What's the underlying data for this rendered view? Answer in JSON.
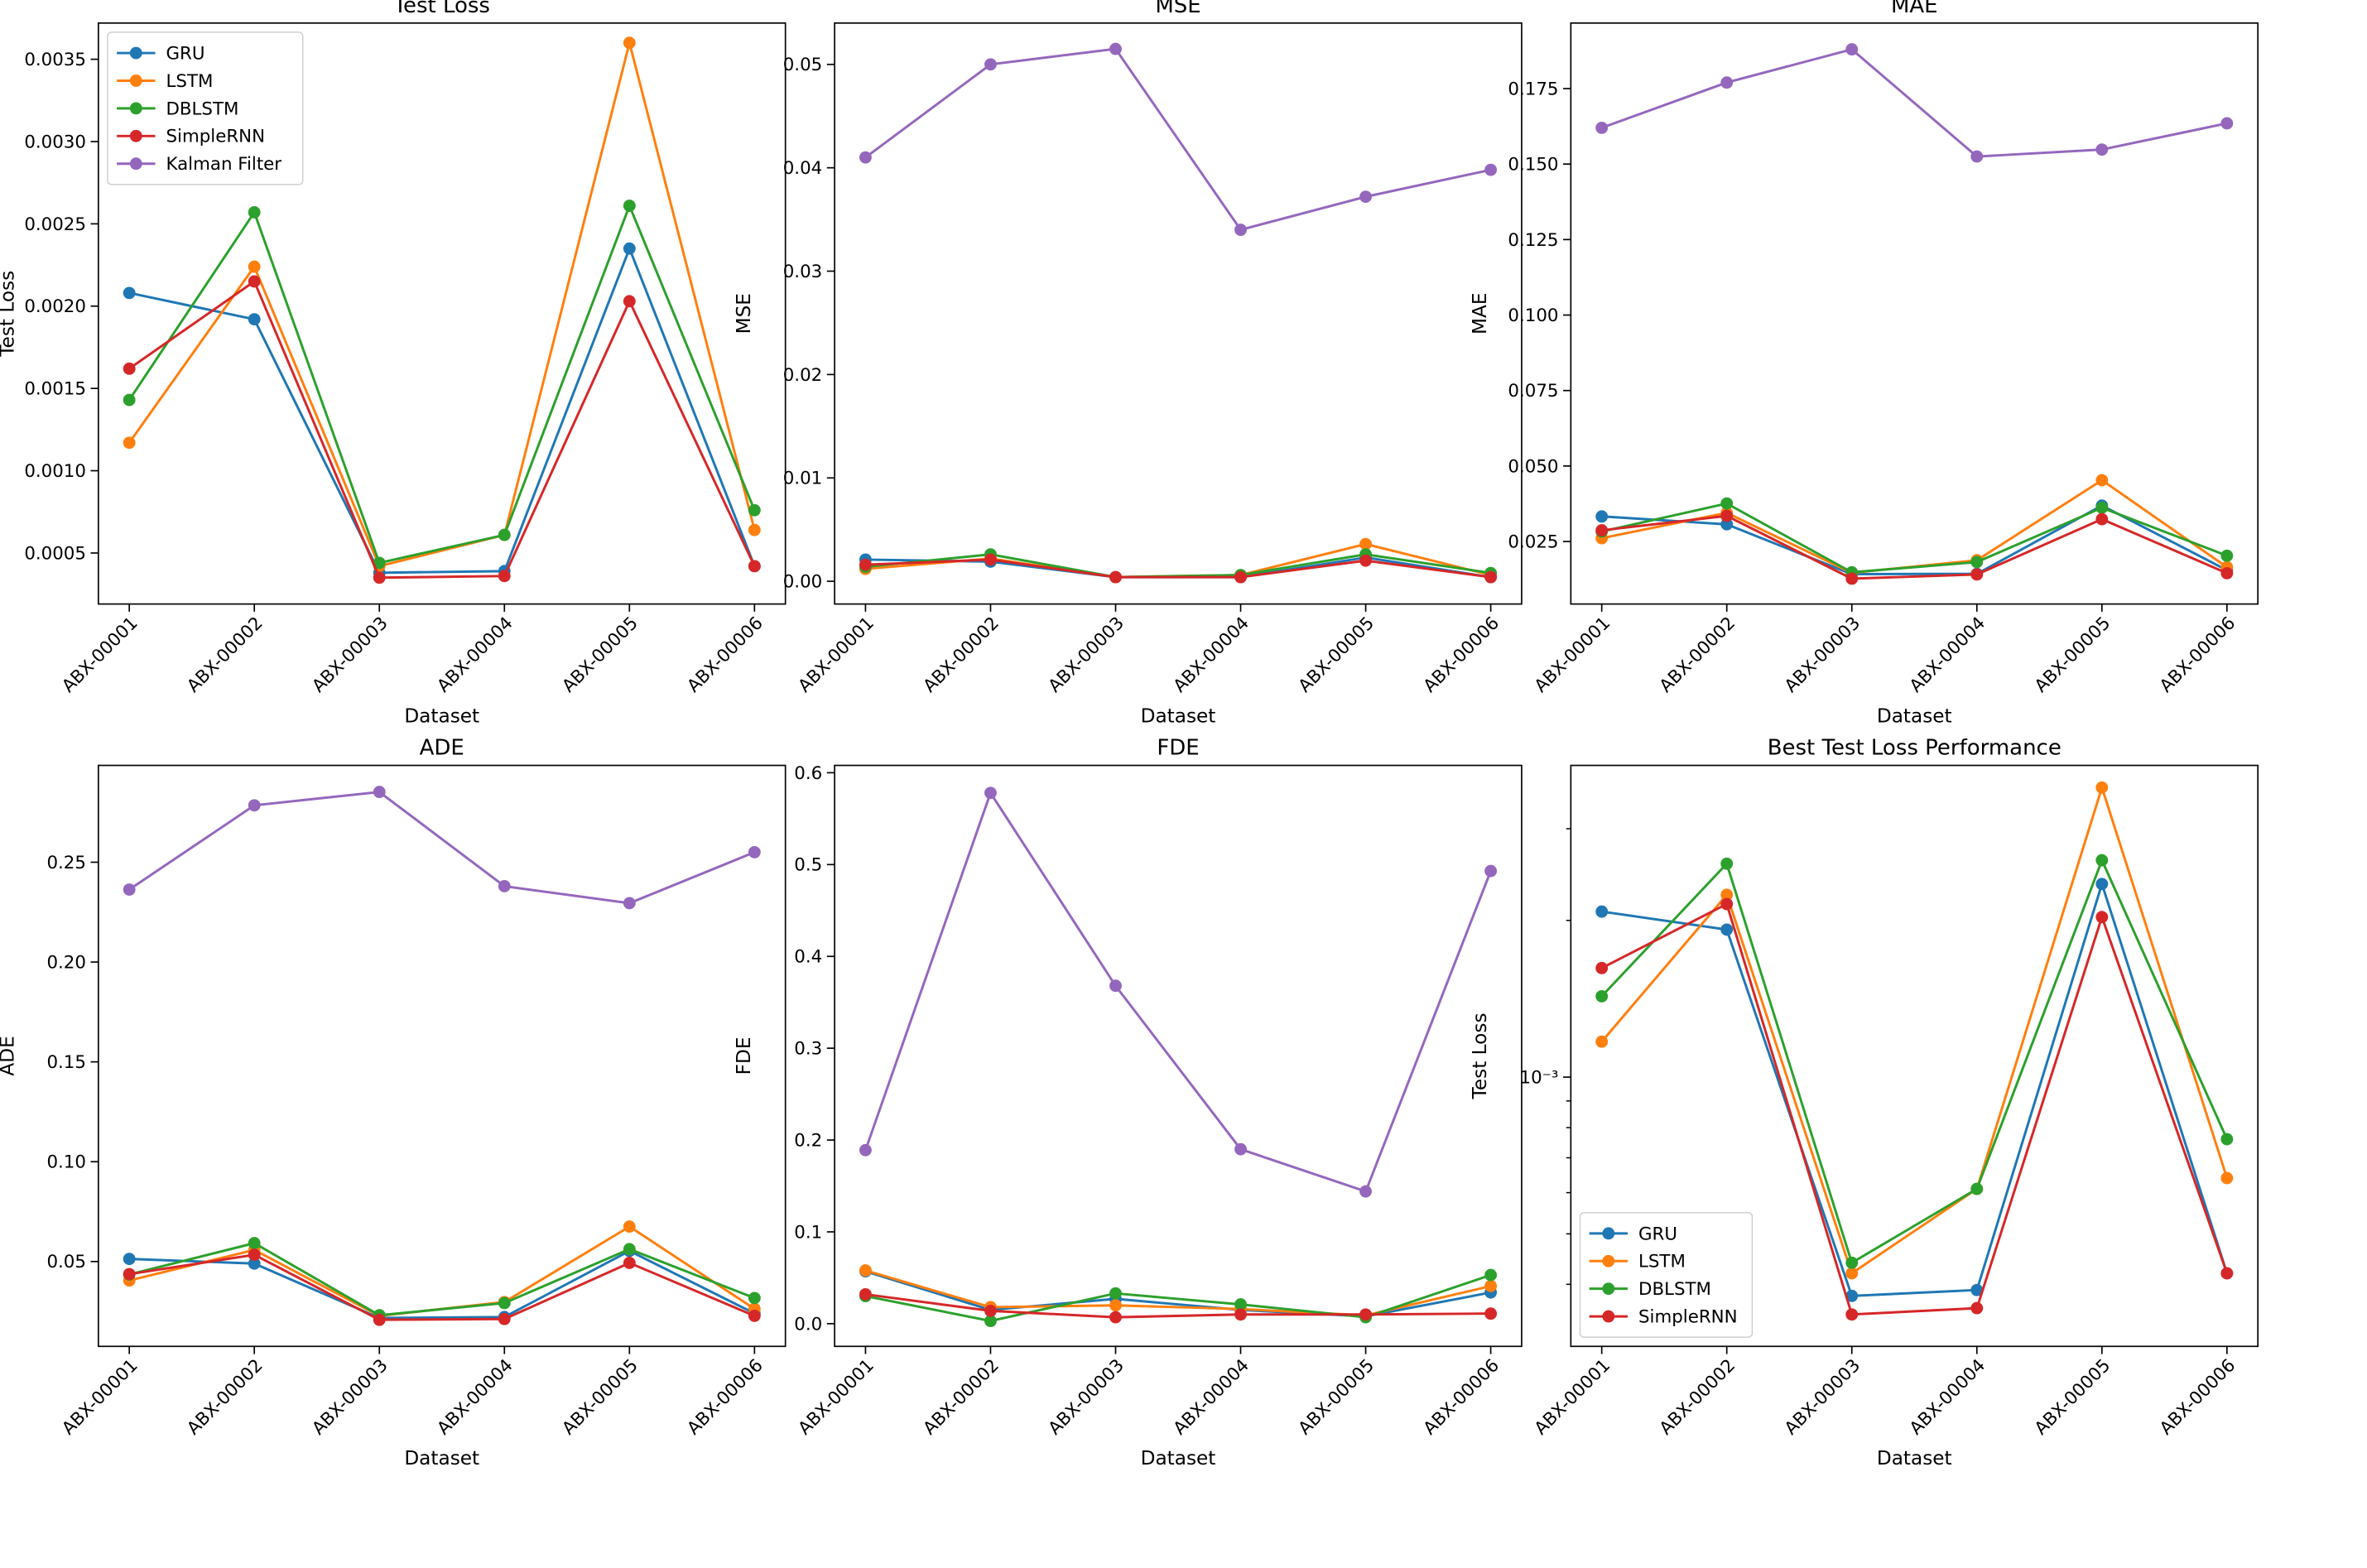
{
  "colors": {
    "GRU": "#1f77b4",
    "LSTM": "#ff7f0e",
    "DBLSTM": "#2ca02c",
    "SimpleRNN": "#d62728",
    "Kalman Filter": "#9467bd"
  },
  "chart_data": [
    {
      "id": "test-loss",
      "type": "line",
      "title": "Test Loss",
      "xlabel": "Dataset",
      "ylabel": "Test Loss",
      "categories": [
        "ABX-00001",
        "ABX-00002",
        "ABX-00003",
        "ABX-00004",
        "ABX-00005",
        "ABX-00006"
      ],
      "yscale": "linear",
      "ylim": [
        0.00019,
        0.00372
      ],
      "yticks": [
        0.0005,
        0.001,
        0.0015,
        0.002,
        0.0025,
        0.003,
        0.0035
      ],
      "ytick_labels": [
        "0.0005",
        "0.0010",
        "0.0015",
        "0.0020",
        "0.0025",
        "0.0030",
        "0.0035"
      ],
      "legend": {
        "location": "upper-left",
        "entries": [
          "GRU",
          "LSTM",
          "DBLSTM",
          "SimpleRNN",
          "Kalman Filter"
        ]
      },
      "series": [
        {
          "name": "GRU",
          "values": [
            0.00208,
            0.00192,
            0.00038,
            0.00039,
            0.00235,
            0.00042
          ]
        },
        {
          "name": "LSTM",
          "values": [
            0.00117,
            0.00224,
            0.00042,
            0.00061,
            0.0036,
            0.00064
          ]
        },
        {
          "name": "DBLSTM",
          "values": [
            0.00143,
            0.00257,
            0.00044,
            0.00061,
            0.00261,
            0.00076
          ]
        },
        {
          "name": "SimpleRNN",
          "values": [
            0.00162,
            0.00215,
            0.00035,
            0.00036,
            0.00203,
            0.00042
          ]
        }
      ]
    },
    {
      "id": "mse",
      "type": "line",
      "title": "MSE",
      "xlabel": "Dataset",
      "ylabel": "MSE",
      "categories": [
        "ABX-00001",
        "ABX-00002",
        "ABX-00003",
        "ABX-00004",
        "ABX-00005",
        "ABX-00006"
      ],
      "yscale": "linear",
      "ylim": [
        -0.0022,
        0.054
      ],
      "yticks": [
        0,
        0.01,
        0.02,
        0.03,
        0.04,
        0.05
      ],
      "ytick_labels": [
        "0.00",
        "0.01",
        "0.02",
        "0.03",
        "0.04",
        "0.05"
      ],
      "series": [
        {
          "name": "GRU",
          "values": [
            0.0021,
            0.0019,
            0.0004,
            0.0004,
            0.0023,
            0.0004
          ]
        },
        {
          "name": "LSTM",
          "values": [
            0.0012,
            0.0022,
            0.0004,
            0.0006,
            0.0036,
            0.0006
          ]
        },
        {
          "name": "DBLSTM",
          "values": [
            0.0014,
            0.0026,
            0.0004,
            0.0006,
            0.0026,
            0.0008
          ]
        },
        {
          "name": "SimpleRNN",
          "values": [
            0.0016,
            0.0021,
            0.0004,
            0.0004,
            0.002,
            0.0004
          ]
        },
        {
          "name": "Kalman Filter",
          "values": [
            0.041,
            0.05,
            0.0515,
            0.034,
            0.0372,
            0.0398
          ]
        }
      ]
    },
    {
      "id": "mae",
      "type": "line",
      "title": "MAE",
      "xlabel": "Dataset",
      "ylabel": "MAE",
      "categories": [
        "ABX-00001",
        "ABX-00002",
        "ABX-00003",
        "ABX-00004",
        "ABX-00005",
        "ABX-00006"
      ],
      "yscale": "linear",
      "ylim": [
        0.0043,
        0.1967
      ],
      "yticks": [
        0.025,
        0.05,
        0.075,
        0.1,
        0.125,
        0.15,
        0.175
      ],
      "ytick_labels": [
        "0.025",
        "0.050",
        "0.075",
        "0.100",
        "0.125",
        "0.150",
        "0.175"
      ],
      "series": [
        {
          "name": "GRU",
          "values": [
            0.0333,
            0.0307,
            0.0142,
            0.0143,
            0.0369,
            0.0155
          ]
        },
        {
          "name": "LSTM",
          "values": [
            0.0261,
            0.0345,
            0.0146,
            0.0188,
            0.0453,
            0.0165
          ]
        },
        {
          "name": "DBLSTM",
          "values": [
            0.0283,
            0.0376,
            0.0148,
            0.0182,
            0.0362,
            0.0203
          ]
        },
        {
          "name": "SimpleRNN",
          "values": [
            0.0287,
            0.0335,
            0.0127,
            0.0141,
            0.0324,
            0.0145
          ]
        },
        {
          "name": "Kalman Filter",
          "values": [
            0.162,
            0.177,
            0.188,
            0.1525,
            0.1548,
            0.1635
          ]
        }
      ]
    },
    {
      "id": "ade",
      "type": "line",
      "title": "ADE",
      "xlabel": "Dataset",
      "ylabel": "ADE",
      "categories": [
        "ABX-00001",
        "ABX-00002",
        "ABX-00003",
        "ABX-00004",
        "ABX-00005",
        "ABX-00006"
      ],
      "yscale": "linear",
      "ylim": [
        0.0075,
        0.2985
      ],
      "yticks": [
        0.05,
        0.1,
        0.15,
        0.2,
        0.25
      ],
      "ytick_labels": [
        "0.05",
        "0.10",
        "0.15",
        "0.20",
        "0.25"
      ],
      "series": [
        {
          "name": "GRU",
          "values": [
            0.0513,
            0.049,
            0.0217,
            0.0222,
            0.0553,
            0.024
          ]
        },
        {
          "name": "LSTM",
          "values": [
            0.0405,
            0.0558,
            0.0228,
            0.0297,
            0.0675,
            0.0263
          ]
        },
        {
          "name": "DBLSTM",
          "values": [
            0.0435,
            0.0592,
            0.0231,
            0.0292,
            0.0562,
            0.0317
          ]
        },
        {
          "name": "SimpleRNN",
          "values": [
            0.0437,
            0.0534,
            0.0208,
            0.0212,
            0.0493,
            0.0228
          ]
        },
        {
          "name": "Kalman Filter",
          "values": [
            0.2363,
            0.2785,
            0.2852,
            0.238,
            0.2295,
            0.255
          ]
        }
      ]
    },
    {
      "id": "fde",
      "type": "line",
      "title": "FDE",
      "xlabel": "Dataset",
      "ylabel": "FDE",
      "categories": [
        "ABX-00001",
        "ABX-00002",
        "ABX-00003",
        "ABX-00004",
        "ABX-00005",
        "ABX-00006"
      ],
      "yscale": "linear",
      "ylim": [
        -0.0247,
        0.608
      ],
      "yticks": [
        0,
        0.1,
        0.2,
        0.3,
        0.4,
        0.5,
        0.6
      ],
      "ytick_labels": [
        "0.0",
        "0.1",
        "0.2",
        "0.3",
        "0.4",
        "0.5",
        "0.6"
      ],
      "series": [
        {
          "name": "GRU",
          "values": [
            0.057,
            0.015,
            0.027,
            0.015,
            0.008,
            0.034
          ]
        },
        {
          "name": "LSTM",
          "values": [
            0.058,
            0.018,
            0.02,
            0.016,
            0.009,
            0.041
          ]
        },
        {
          "name": "DBLSTM",
          "values": [
            0.03,
            0.003,
            0.033,
            0.021,
            0.007,
            0.053
          ]
        },
        {
          "name": "SimpleRNN",
          "values": [
            0.032,
            0.014,
            0.007,
            0.01,
            0.01,
            0.011
          ]
        },
        {
          "name": "Kalman Filter",
          "values": [
            0.189,
            0.578,
            0.368,
            0.19,
            0.144,
            0.493
          ]
        }
      ]
    },
    {
      "id": "best-test-loss",
      "type": "line",
      "title": "Best Test Loss Performance",
      "xlabel": "Dataset",
      "ylabel": "Test Loss",
      "categories": [
        "ABX-00001",
        "ABX-00002",
        "ABX-00003",
        "ABX-00004",
        "ABX-00005",
        "ABX-00006"
      ],
      "yscale": "log",
      "ylim": [
        0.000304,
        0.00397
      ],
      "yticks": [
        0.001
      ],
      "ytick_labels": [
        "10⁻³"
      ],
      "legend": {
        "location": "lower-left",
        "entries": [
          "GRU",
          "LSTM",
          "DBLSTM",
          "SimpleRNN"
        ]
      },
      "series": [
        {
          "name": "GRU",
          "values": [
            0.00208,
            0.00192,
            0.00038,
            0.00039,
            0.00235,
            0.00042
          ]
        },
        {
          "name": "LSTM",
          "values": [
            0.00117,
            0.00224,
            0.00042,
            0.00061,
            0.0036,
            0.00064
          ]
        },
        {
          "name": "DBLSTM",
          "values": [
            0.00143,
            0.00257,
            0.00044,
            0.00061,
            0.00261,
            0.00076
          ]
        },
        {
          "name": "SimpleRNN",
          "values": [
            0.00162,
            0.00215,
            0.00035,
            0.00036,
            0.00203,
            0.00042
          ]
        }
      ]
    }
  ]
}
